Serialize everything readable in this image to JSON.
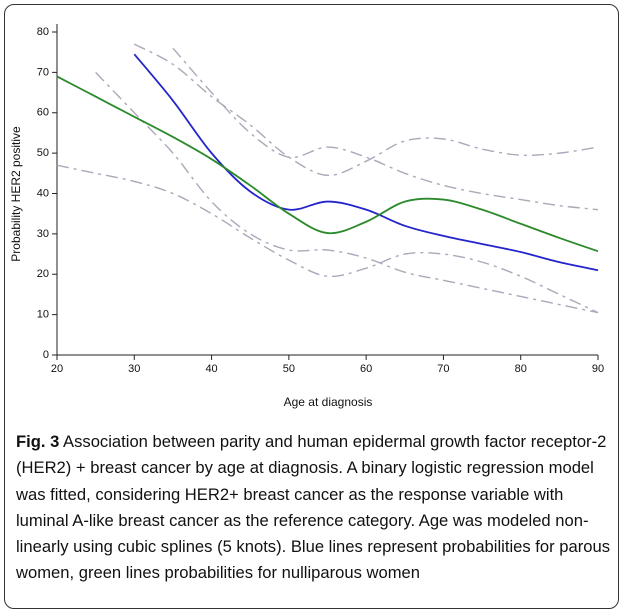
{
  "chart_data": {
    "type": "line",
    "x_label": "Age at diagnosis",
    "y_label": "Probability HER2 positive",
    "x": [
      20,
      25,
      30,
      35,
      40,
      45,
      50,
      55,
      60,
      65,
      70,
      75,
      80,
      85,
      90
    ],
    "series": [
      {
        "color": "#2424cc",
        "style": "solid",
        "values": [
          null,
          null,
          74.5,
          63,
          50,
          40.5,
          36,
          38,
          36,
          32,
          29.5,
          27.5,
          25.5,
          23,
          21
        ]
      },
      {
        "color": "#2b8a2b",
        "style": "solid",
        "values": [
          69,
          64,
          59,
          54,
          48.5,
          42,
          35,
          30.2,
          33,
          38,
          38.5,
          36,
          32.5,
          29,
          25.7
        ]
      },
      {
        "color": "#a9a9b9",
        "style": "dashed",
        "values": [
          null,
          null,
          null,
          76,
          65,
          55,
          49,
          51.5,
          49,
          45,
          42,
          40,
          38.5,
          37,
          36
        ]
      },
      {
        "color": "#a9a9b9",
        "style": "dashed",
        "values": [
          null,
          70,
          60,
          50,
          38,
          30,
          26,
          26,
          24,
          20.5,
          18.5,
          16.5,
          14.5,
          12.5,
          10.5
        ]
      },
      {
        "color": "#a9a9b9",
        "style": "dashed",
        "values": [
          null,
          null,
          77,
          72,
          64,
          57,
          49,
          44.5,
          48,
          53,
          53.5,
          51,
          49.5,
          50,
          51.5
        ]
      },
      {
        "color": "#a9a9b9",
        "style": "dashed",
        "values": [
          47,
          45,
          43,
          40,
          35,
          29,
          23.5,
          19.5,
          21.5,
          25,
          25,
          23,
          19.5,
          15,
          10.5
        ]
      }
    ],
    "xlim": [
      20,
      90
    ],
    "xticks": [
      20,
      30,
      40,
      50,
      60,
      70,
      80,
      90
    ],
    "ylim": [
      0,
      80
    ],
    "yticks": [
      0,
      10,
      20,
      30,
      40,
      50,
      60,
      70,
      80
    ],
    "grid": false,
    "caption_label": "Fig. 3",
    "caption": "Association between parity and human epidermal growth factor receptor-2 (HER2) + breast cancer by age at diagnosis. A binary logistic regression model was fitted, considering HER2+ breast cancer as the response variable with luminal A-like breast cancer as the reference category. Age was modeled non-linearly using cubic splines (5 knots). Blue lines represent probabilities for parous women, green lines probabilities for nulliparous women"
  }
}
